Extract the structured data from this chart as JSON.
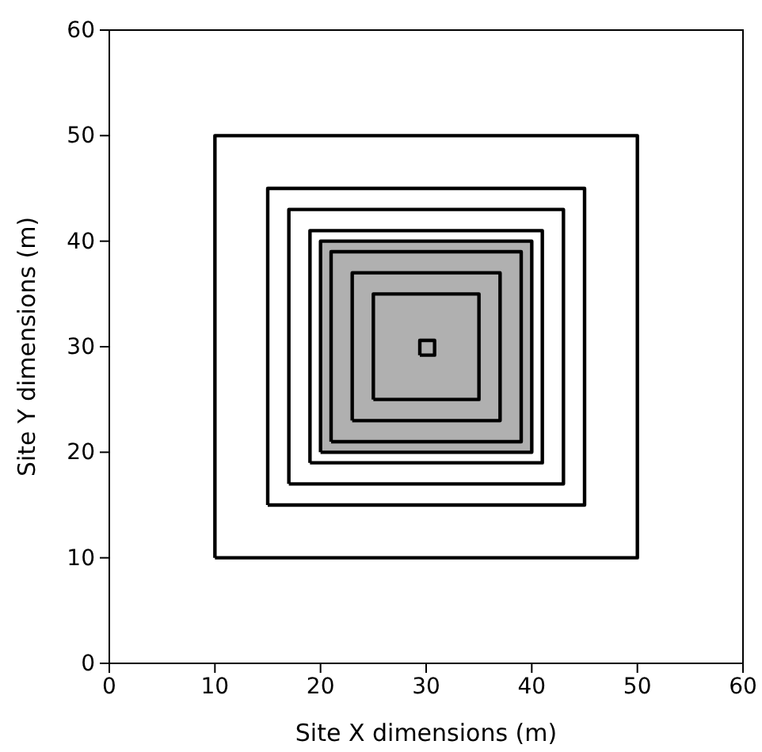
{
  "chart_data": {
    "type": "area",
    "xlabel": "Site X dimensions (m)",
    "ylabel": "Site Y dimensions (m)",
    "xlim": [
      0,
      60
    ],
    "ylim": [
      0,
      60
    ],
    "xticks": [
      0,
      10,
      20,
      30,
      40,
      50,
      60
    ],
    "yticks": [
      0,
      10,
      20,
      30,
      40,
      50,
      60
    ],
    "grid": false,
    "marker": "none",
    "line_style": "solid",
    "series": [
      {
        "type": "area",
        "color": "#ffffff",
        "x": [
          10,
          50,
          50,
          10,
          10
        ],
        "values": [
          10,
          10,
          50,
          50,
          10
        ]
      },
      {
        "type": "area",
        "color": "#ffffff",
        "x": [
          15,
          45,
          45,
          15,
          15
        ],
        "values": [
          15,
          15,
          45,
          45,
          15
        ]
      },
      {
        "type": "area",
        "color": "#ffffff",
        "x": [
          17,
          43,
          43,
          17,
          17
        ],
        "values": [
          17,
          17,
          43,
          43,
          17
        ]
      },
      {
        "type": "area",
        "color": "#ffffff",
        "x": [
          19,
          41,
          41,
          19,
          19
        ],
        "values": [
          19,
          19,
          41,
          41,
          19
        ]
      },
      {
        "type": "area",
        "color": "#b0b0b0",
        "x": [
          20,
          40,
          40,
          20,
          20
        ],
        "values": [
          20,
          20,
          40,
          40,
          20
        ]
      },
      {
        "type": "area",
        "color": "#b0b0b0",
        "x": [
          21,
          39,
          39,
          21,
          21
        ],
        "values": [
          21,
          21,
          39,
          39,
          21
        ]
      },
      {
        "type": "area",
        "color": "#b0b0b0",
        "x": [
          23,
          37,
          37,
          23,
          23
        ],
        "values": [
          23,
          23,
          37,
          37,
          23
        ]
      },
      {
        "type": "area",
        "color": "#b0b0b0",
        "x": [
          25,
          35,
          35,
          25,
          25
        ],
        "values": [
          25,
          25,
          35,
          35,
          25
        ]
      },
      {
        "color": "#b0b0b0",
        "x": [
          29.4,
          30.8,
          30.8,
          29.4,
          29.4
        ],
        "values": [
          29.2,
          29.2,
          30.6,
          30.6,
          29.2
        ]
      }
    ]
  }
}
